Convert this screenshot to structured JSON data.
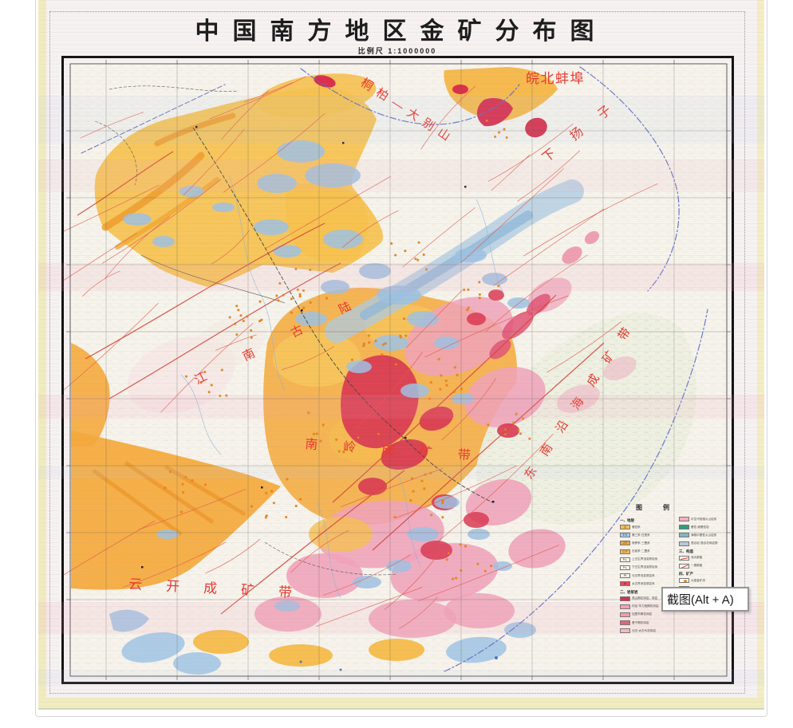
{
  "map": {
    "title": "中国南方地区金矿分布图",
    "subtitle": "比例尺 1:1000000",
    "labels": {
      "l0": "皖北蚌埠",
      "l1": "桐柏—大别山",
      "l2": "下扬子",
      "l3": "江南古陆",
      "l4": "南岭成矿带",
      "l5": "东南沿海成矿带",
      "l6": "云开成矿带"
    },
    "colors": {
      "quaternary_yellow": "#f6c14f",
      "orange": "#f4a93a",
      "pink": "#f0a3ba",
      "crimson": "#d93a52",
      "blue_patch": "#9fc2e2",
      "pale_block": "#eef0e2",
      "fault_red": "#e2574a",
      "boundary_blue": "#5a6cc4",
      "label_red": "#e8392e",
      "deposit_orange": "#ef8a1a"
    }
  },
  "legend": {
    "title": "图例",
    "columns": [
      [
        {
          "header": "一、地层",
          "items": [
            {
              "c": "#f6c14f",
              "s": "Q",
              "t": "第四系"
            },
            {
              "c": "#aacbe8",
              "s": "E·K",
              "t": "第三系·白垩系"
            },
            {
              "c": "#f0a43c",
              "s": "J·T",
              "t": "侏罗系·三叠系"
            },
            {
              "c": "#f6b95a",
              "s": "C·P",
              "t": "石炭系·二叠系"
            },
            {
              "c": "#fdfbf2",
              "s": "Pz₂",
              "t": "上古生界浅变质岩系"
            },
            {
              "c": "#fdfbf2",
              "s": "Pz₁",
              "t": "下古生界浅变质岩系"
            },
            {
              "c": "#fbf3e6",
              "s": "Pt",
              "t": "元古界浅变质岩系"
            },
            {
              "c": "#e84a5f",
              "s": "Ar",
              "t": "太古界深变质岩系"
            }
          ]
        },
        {
          "header": "二、岩浆岩",
          "items": [
            {
              "c": "#d8304a",
              "t": "燕山期花岗岩、斑岩"
            },
            {
              "c": "#f4a0b0",
              "t": "印支·华力西期花岗岩"
            },
            {
              "c": "#f29aaa",
              "t": "加里东期花岗岩"
            },
            {
              "c": "#e9607a",
              "t": "晋宁期花岗岩"
            },
            {
              "c": "#f6b8c6",
              "t": "元古·太古代花岗岩"
            }
          ]
        }
      ],
      [
        {
          "items": [
            {
              "c": "#f3b0be",
              "t": "中生代陆相火山岩系"
            },
            {
              "c": "#2e9e7e",
              "t": "基性·超基性岩"
            },
            {
              "c": "#7fb6c8",
              "t": "海相中基性火山岩系"
            },
            {
              "c": "#b8c8d8",
              "t": "混合岩·混合花岗岩类"
            }
          ]
        },
        {
          "header": "三、构造",
          "items": [
            {
              "k": "fault",
              "t": "深大断裂"
            },
            {
              "k": "fault2",
              "t": "一般断裂"
            }
          ]
        },
        {
          "header": "四、矿产",
          "items": [
            {
              "k": "dot",
              "t": "大型金矿床"
            },
            {
              "k": "dot",
              "t": "中型金矿床"
            },
            {
              "k": "dot",
              "t": "小型金矿床"
            },
            {
              "k": "dot",
              "t": "金矿点"
            }
          ]
        }
      ]
    ]
  },
  "tooltip": {
    "text": "截图(Alt + A)"
  }
}
